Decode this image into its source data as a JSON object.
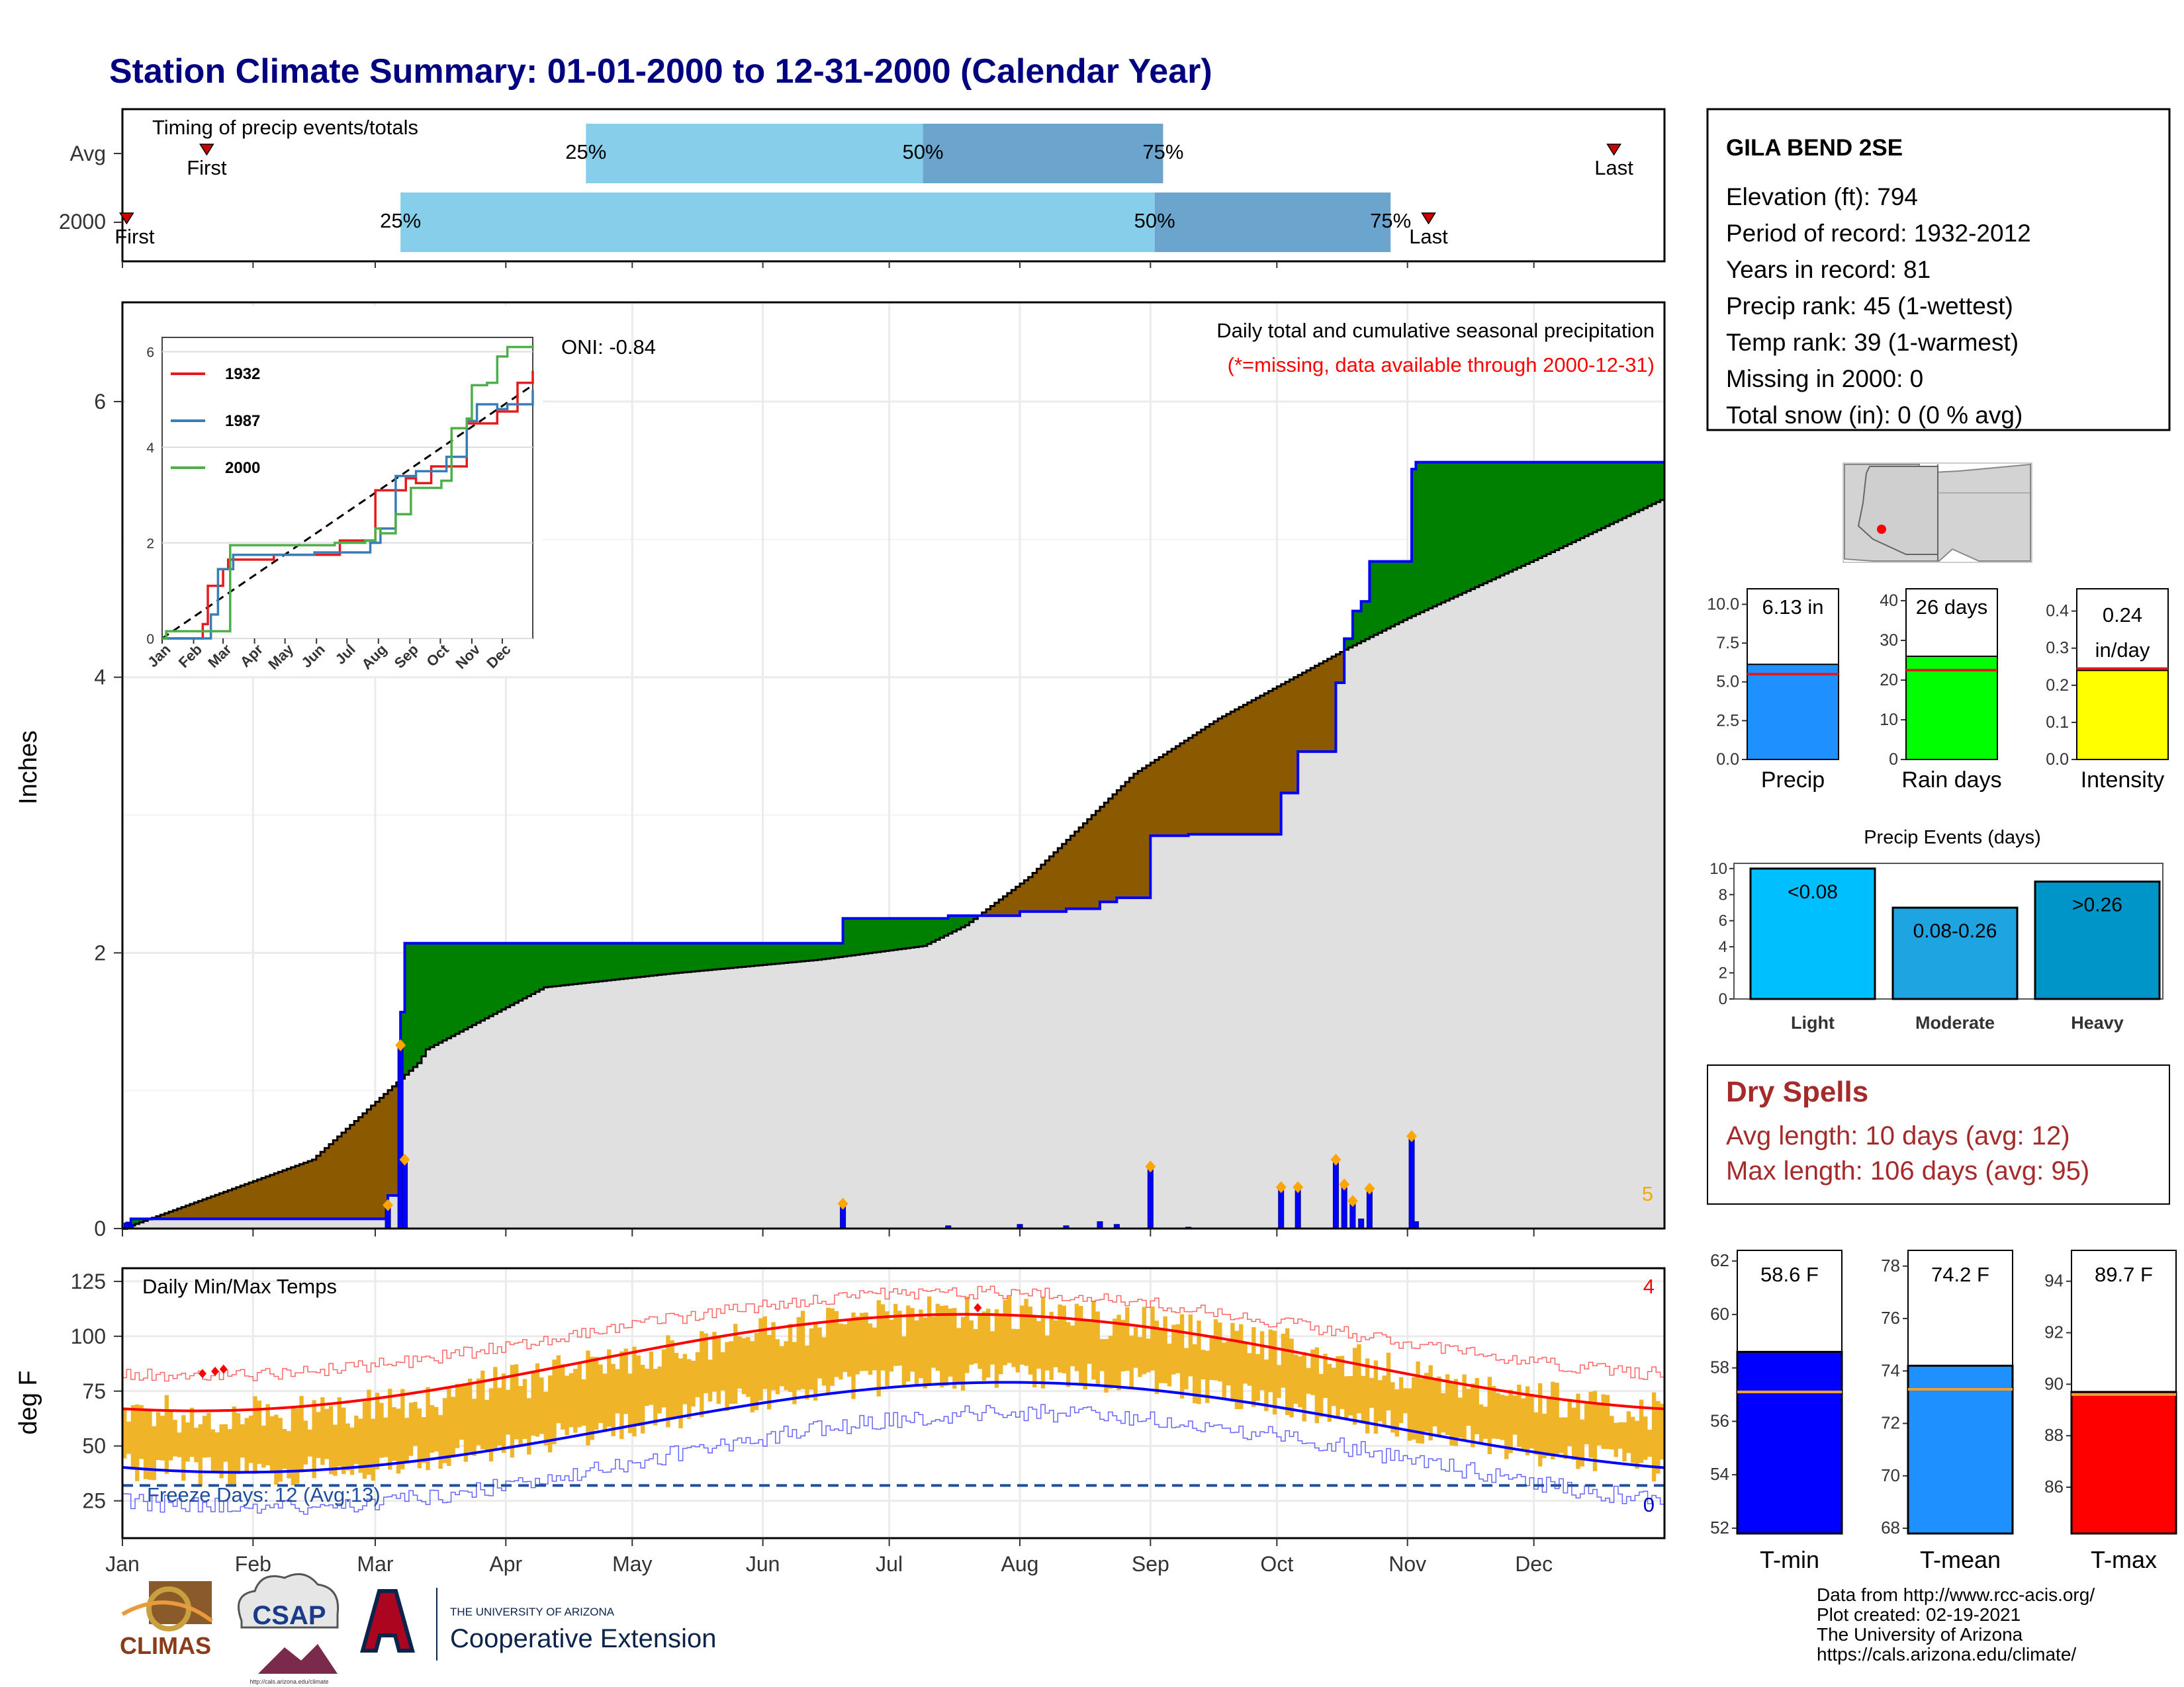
{
  "title": "Station Climate Summary: 01-01-2000 to 12-31-2000 (Calendar Year)",
  "timing": {
    "title": "Timing of precip events/totals",
    "rows": [
      "Avg",
      "2000"
    ],
    "first_label": "First",
    "last_label": "Last",
    "p25": "25%",
    "p50": "50%",
    "p75": "75%",
    "avg": {
      "first": "2000-01-21",
      "p25": "2000-04-20",
      "p50": "2000-07-09",
      "p75": "2000-09-04",
      "last": "2000-12-20"
    },
    "y2000": {
      "first": "2000-01-02",
      "p25": "2000-03-07",
      "p50": "2000-09-02",
      "p75": "2000-10-28",
      "last": "2000-11-06"
    }
  },
  "station": {
    "name": "GILA BEND 2SE",
    "lines": [
      "Elevation (ft): 794",
      "Period of record: 1932-2012",
      "Years in record: 81",
      "Precip rank: 45 (1-wettest)",
      "Temp rank: 39 (1-warmest)",
      "Missing in 2000: 0",
      "Total snow (in): 0 (0 % avg)"
    ]
  },
  "precip_panel": {
    "ylabel": "Inches",
    "oni": "ONI: -0.84",
    "subtitle": "Daily total and cumulative seasonal precipitation",
    "missing_note": "(*=missing, data available through 2000-12-31)",
    "corner_count": "5",
    "colors": {
      "above": "#008000",
      "below": "#8b5a00",
      "normal": "#e0e0e0",
      "observed": "#0000ff",
      "marker": "#ffa500"
    }
  },
  "inset": {
    "series": [
      "1932",
      "1987",
      "2000"
    ],
    "colors": [
      "#e41a1c",
      "#377eb8",
      "#4daf4a"
    ],
    "xticks": [
      "Jan",
      "Feb",
      "Mar",
      "Apr",
      "May",
      "Jun",
      "Jul",
      "Aug",
      "Sep",
      "Oct",
      "Nov",
      "Dec"
    ],
    "yticks": [
      "0",
      "2",
      "4",
      "6"
    ]
  },
  "temp_panel": {
    "ylabel": "deg F",
    "title": "Daily Min/Max Temps",
    "freeze": "Freeze Days: 12 (Avg:13)",
    "count_hi": "4",
    "count_lo": "0"
  },
  "months": [
    "Jan",
    "Feb",
    "Mar",
    "Apr",
    "May",
    "Jun",
    "Jul",
    "Aug",
    "Sep",
    "Oct",
    "Nov",
    "Dec"
  ],
  "mini_bars": {
    "precip": {
      "label": "Precip",
      "value_label": "6.13 in",
      "value": 6.13,
      "avg": 5.5,
      "yticks": [
        "0.0",
        "2.5",
        "5.0",
        "7.5",
        "10.0"
      ],
      "ymax": 11,
      "color": "#1e90ff"
    },
    "raindays": {
      "label": "Rain days",
      "value_label": "26 days",
      "value": 26,
      "avg": 22.5,
      "yticks": [
        "0",
        "10",
        "20",
        "30",
        "40"
      ],
      "ymax": 43,
      "color": "#00ff00"
    },
    "intensity": {
      "label": "Intensity",
      "value_label1": "0.24",
      "value_label2": "in/day",
      "value": 0.24,
      "avg": 0.245,
      "yticks": [
        "0.0",
        "0.1",
        "0.2",
        "0.3",
        "0.4"
      ],
      "ymax": 0.46,
      "color": "#ffff00"
    }
  },
  "events": {
    "title": "Precip Events (days)",
    "yticks": [
      "0",
      "2",
      "4",
      "6",
      "8",
      "10"
    ],
    "categories": [
      "Light",
      "Moderate",
      "Heavy"
    ],
    "labels": [
      "<0.08",
      "0.08-0.26",
      ">0.26"
    ],
    "values": [
      10,
      7,
      9
    ],
    "colors": [
      "#00bfff",
      "#1ea4e0",
      "#0095c8"
    ]
  },
  "dry_spells": {
    "title": "Dry Spells",
    "avg": "Avg length: 10 days (avg: 12)",
    "max": "Max length: 106 days (avg: 95)"
  },
  "temp_bars": {
    "tmin": {
      "label": "T-min",
      "value_label": "58.6 F",
      "value": 58.6,
      "avg": 57.1,
      "ymin": 51.8,
      "ymax": 62.4,
      "ticks": [
        52,
        54,
        56,
        58,
        60,
        62
      ],
      "color": "#0000ff"
    },
    "tmean": {
      "label": "T-mean",
      "value_label": "74.2 F",
      "value": 74.2,
      "avg": 73.3,
      "ymin": 67.8,
      "ymax": 78.6,
      "ticks": [
        68,
        70,
        72,
        74,
        76,
        78
      ],
      "color": "#1e90ff"
    },
    "tmax": {
      "label": "T-max",
      "value_label": "89.7 F",
      "value": 89.7,
      "avg": 89.6,
      "ymin": 84.2,
      "ymax": 95.2,
      "ticks": [
        86,
        88,
        90,
        92,
        94
      ],
      "color": "#ff0000"
    }
  },
  "credits": {
    "lines": [
      "Data from http://www.rcc-acis.org/",
      "Plot created: 02-19-2021",
      "The University of Arizona",
      "https://cals.arizona.edu/climate/"
    ],
    "climas": "CLIMAS",
    "csap": "CSAP",
    "csap_url": "http://cals.arizona.edu/climate",
    "ua_small": "THE UNIVERSITY OF ARIZONA",
    "ua_big": "Cooperative Extension"
  }
}
